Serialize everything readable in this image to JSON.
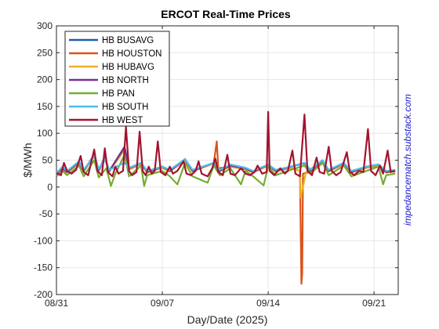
{
  "chart_data": {
    "type": "line",
    "title": "ERCOT Real-Time Prices",
    "xlabel": "Day/Date (2025)",
    "ylabel": "$/MWh",
    "credit": "impedancematch.substack.com",
    "ylim": [
      -200,
      300
    ],
    "yticks": [
      "300",
      "250",
      "200",
      "150",
      "100",
      "50",
      "0",
      "-50",
      "-100",
      "-150",
      "-200"
    ],
    "xticks": [
      {
        "day": 0,
        "label": "08/31"
      },
      {
        "day": 7,
        "label": "09/07"
      },
      {
        "day": 14,
        "label": "09/14"
      },
      {
        "day": 21,
        "label": "09/21"
      }
    ],
    "xlim_days": [
      0,
      22.6
    ],
    "grid": true,
    "legend_position": "top-left",
    "series": [
      {
        "name": "HB BUSAVG",
        "color": "#1f5fa8",
        "points": [
          [
            0,
            25
          ],
          [
            0.4,
            35
          ],
          [
            0.7,
            28
          ],
          [
            1.5,
            47
          ],
          [
            1.8,
            30
          ],
          [
            2.5,
            60
          ],
          [
            2.8,
            32
          ],
          [
            3.2,
            55
          ],
          [
            3.5,
            30
          ],
          [
            4.5,
            75
          ],
          [
            4.8,
            35
          ],
          [
            5.6,
            45
          ],
          [
            6.0,
            28
          ],
          [
            7.0,
            38
          ],
          [
            7.5,
            30
          ],
          [
            8.5,
            52
          ],
          [
            9.0,
            30
          ],
          [
            10.4,
            45
          ],
          [
            10.8,
            30
          ],
          [
            11.5,
            40
          ],
          [
            12.5,
            35
          ],
          [
            13.0,
            28
          ],
          [
            14.0,
            42
          ],
          [
            14.5,
            30
          ],
          [
            15.5,
            38
          ],
          [
            16.4,
            45
          ],
          [
            16.8,
            30
          ],
          [
            17.6,
            50
          ],
          [
            18.0,
            30
          ],
          [
            19.0,
            45
          ],
          [
            19.5,
            28
          ],
          [
            20.5,
            38
          ],
          [
            21.3,
            42
          ],
          [
            21.8,
            28
          ],
          [
            22.4,
            30
          ]
        ]
      },
      {
        "name": "HB HOUSTON",
        "color": "#d9541a",
        "points": [
          [
            0,
            24
          ],
          [
            0.4,
            33
          ],
          [
            0.7,
            27
          ],
          [
            1.5,
            45
          ],
          [
            1.8,
            29
          ],
          [
            2.5,
            58
          ],
          [
            2.8,
            30
          ],
          [
            3.2,
            52
          ],
          [
            3.5,
            29
          ],
          [
            4.5,
            70
          ],
          [
            4.8,
            33
          ],
          [
            5.6,
            43
          ],
          [
            6.0,
            27
          ],
          [
            7.0,
            36
          ],
          [
            7.5,
            29
          ],
          [
            8.5,
            50
          ],
          [
            9.0,
            29
          ],
          [
            10.4,
            44
          ],
          [
            10.6,
            85
          ],
          [
            10.7,
            35
          ],
          [
            11.5,
            38
          ],
          [
            12.5,
            33
          ],
          [
            13.0,
            27
          ],
          [
            14.0,
            40
          ],
          [
            14.5,
            29
          ],
          [
            15.5,
            36
          ],
          [
            16.1,
            30
          ],
          [
            16.2,
            -180
          ],
          [
            16.25,
            -160
          ],
          [
            16.3,
            25
          ],
          [
            16.8,
            28
          ],
          [
            17.6,
            48
          ],
          [
            18.0,
            29
          ],
          [
            19.0,
            43
          ],
          [
            19.5,
            27
          ],
          [
            20.5,
            36
          ],
          [
            21.3,
            40
          ],
          [
            21.8,
            27
          ],
          [
            22.4,
            29
          ]
        ]
      },
      {
        "name": "HB HUBAVG",
        "color": "#edb120",
        "points": [
          [
            0,
            24
          ],
          [
            0.4,
            34
          ],
          [
            0.7,
            27
          ],
          [
            1.5,
            46
          ],
          [
            1.8,
            29
          ],
          [
            2.5,
            59
          ],
          [
            2.8,
            31
          ],
          [
            3.2,
            53
          ],
          [
            3.5,
            29
          ],
          [
            4.5,
            72
          ],
          [
            4.8,
            34
          ],
          [
            5.6,
            44
          ],
          [
            6.0,
            27
          ],
          [
            7.0,
            37
          ],
          [
            7.5,
            29
          ],
          [
            8.5,
            51
          ],
          [
            9.0,
            29
          ],
          [
            10.4,
            44
          ],
          [
            10.8,
            29
          ],
          [
            11.5,
            39
          ],
          [
            12.5,
            34
          ],
          [
            13.0,
            27
          ],
          [
            14.0,
            41
          ],
          [
            14.5,
            29
          ],
          [
            15.5,
            37
          ],
          [
            16.1,
            30
          ],
          [
            16.15,
            -20
          ],
          [
            16.3,
            0
          ],
          [
            16.5,
            28
          ],
          [
            17.6,
            49
          ],
          [
            18.0,
            29
          ],
          [
            19.0,
            44
          ],
          [
            19.5,
            27
          ],
          [
            20.5,
            37
          ],
          [
            21.3,
            41
          ],
          [
            21.8,
            27
          ],
          [
            22.4,
            29
          ]
        ]
      },
      {
        "name": "HB NORTH",
        "color": "#7e2f8e",
        "points": [
          [
            0,
            25
          ],
          [
            0.4,
            35
          ],
          [
            0.7,
            28
          ],
          [
            1.5,
            47
          ],
          [
            1.8,
            30
          ],
          [
            2.5,
            60
          ],
          [
            2.8,
            32
          ],
          [
            3.2,
            55
          ],
          [
            3.5,
            30
          ],
          [
            4.5,
            74
          ],
          [
            4.8,
            35
          ],
          [
            5.6,
            45
          ],
          [
            6.0,
            28
          ],
          [
            7.0,
            38
          ],
          [
            7.5,
            30
          ],
          [
            8.5,
            52
          ],
          [
            9.0,
            30
          ],
          [
            10.4,
            45
          ],
          [
            10.8,
            30
          ],
          [
            11.5,
            40
          ],
          [
            12.5,
            35
          ],
          [
            13.0,
            28
          ],
          [
            14.0,
            42
          ],
          [
            14.5,
            30
          ],
          [
            15.5,
            38
          ],
          [
            16.4,
            44
          ],
          [
            16.8,
            30
          ],
          [
            17.6,
            50
          ],
          [
            18.0,
            30
          ],
          [
            19.0,
            45
          ],
          [
            19.5,
            28
          ],
          [
            20.5,
            38
          ],
          [
            21.3,
            42
          ],
          [
            21.8,
            28
          ],
          [
            22.4,
            30
          ]
        ]
      },
      {
        "name": "HB PAN",
        "color": "#77ac30",
        "points": [
          [
            0,
            20
          ],
          [
            0.4,
            30
          ],
          [
            0.7,
            22
          ],
          [
            1.5,
            40
          ],
          [
            1.8,
            20
          ],
          [
            2.5,
            50
          ],
          [
            2.8,
            18
          ],
          [
            3.3,
            35
          ],
          [
            3.6,
            2
          ],
          [
            3.9,
            25
          ],
          [
            4.5,
            60
          ],
          [
            4.8,
            20
          ],
          [
            5.6,
            40
          ],
          [
            5.8,
            2
          ],
          [
            6.0,
            22
          ],
          [
            7.0,
            30
          ],
          [
            7.5,
            20
          ],
          [
            8.0,
            5
          ],
          [
            8.5,
            45
          ],
          [
            9.0,
            20
          ],
          [
            10.0,
            8
          ],
          [
            10.4,
            40
          ],
          [
            10.8,
            22
          ],
          [
            11.5,
            35
          ],
          [
            12.2,
            5
          ],
          [
            12.5,
            30
          ],
          [
            13.0,
            20
          ],
          [
            13.7,
            3
          ],
          [
            14.0,
            38
          ],
          [
            14.5,
            22
          ],
          [
            15.5,
            32
          ],
          [
            16.4,
            40
          ],
          [
            16.8,
            25
          ],
          [
            17.6,
            45
          ],
          [
            18.0,
            22
          ],
          [
            19.0,
            40
          ],
          [
            19.5,
            20
          ],
          [
            20.5,
            30
          ],
          [
            21.3,
            38
          ],
          [
            21.6,
            5
          ],
          [
            21.8,
            22
          ],
          [
            22.4,
            25
          ]
        ]
      },
      {
        "name": "HB SOUTH",
        "color": "#4dbeee",
        "points": [
          [
            0,
            26
          ],
          [
            0.4,
            38
          ],
          [
            0.7,
            30
          ],
          [
            1.5,
            48
          ],
          [
            1.8,
            32
          ],
          [
            2.5,
            58
          ],
          [
            2.8,
            34
          ],
          [
            3.2,
            52
          ],
          [
            3.5,
            32
          ],
          [
            4.5,
            45
          ],
          [
            4.8,
            36
          ],
          [
            5.6,
            45
          ],
          [
            6.0,
            30
          ],
          [
            7.0,
            38
          ],
          [
            7.5,
            32
          ],
          [
            8.5,
            52
          ],
          [
            9.0,
            32
          ],
          [
            10.4,
            45
          ],
          [
            10.8,
            32
          ],
          [
            11.5,
            42
          ],
          [
            12.5,
            36
          ],
          [
            13.0,
            30
          ],
          [
            14.0,
            42
          ],
          [
            14.5,
            32
          ],
          [
            15.5,
            38
          ],
          [
            16.4,
            45
          ],
          [
            16.8,
            32
          ],
          [
            17.6,
            50
          ],
          [
            18.0,
            32
          ],
          [
            19.0,
            45
          ],
          [
            19.5,
            30
          ],
          [
            20.5,
            38
          ],
          [
            21.3,
            42
          ],
          [
            21.8,
            30
          ],
          [
            22.4,
            32
          ]
        ]
      },
      {
        "name": "HB WEST",
        "color": "#a2142f",
        "points": [
          [
            0,
            26
          ],
          [
            0.3,
            22
          ],
          [
            0.5,
            45
          ],
          [
            0.7,
            30
          ],
          [
            1.0,
            25
          ],
          [
            1.3,
            32
          ],
          [
            1.6,
            58
          ],
          [
            1.8,
            28
          ],
          [
            2.1,
            22
          ],
          [
            2.5,
            70
          ],
          [
            2.7,
            30
          ],
          [
            3.0,
            22
          ],
          [
            3.2,
            72
          ],
          [
            3.4,
            28
          ],
          [
            3.7,
            20
          ],
          [
            3.9,
            38
          ],
          [
            4.1,
            25
          ],
          [
            4.4,
            30
          ],
          [
            4.6,
            112
          ],
          [
            4.8,
            30
          ],
          [
            5.0,
            22
          ],
          [
            5.3,
            28
          ],
          [
            5.5,
            103
          ],
          [
            5.7,
            30
          ],
          [
            5.9,
            22
          ],
          [
            6.1,
            38
          ],
          [
            6.3,
            25
          ],
          [
            6.5,
            30
          ],
          [
            6.7,
            85
          ],
          [
            6.9,
            28
          ],
          [
            7.2,
            22
          ],
          [
            7.5,
            38
          ],
          [
            7.7,
            25
          ],
          [
            8.0,
            30
          ],
          [
            8.4,
            48
          ],
          [
            8.6,
            25
          ],
          [
            8.9,
            22
          ],
          [
            9.2,
            30
          ],
          [
            9.4,
            48
          ],
          [
            9.6,
            25
          ],
          [
            10.0,
            20
          ],
          [
            10.3,
            35
          ],
          [
            10.5,
            53
          ],
          [
            10.7,
            28
          ],
          [
            11.0,
            22
          ],
          [
            11.3,
            60
          ],
          [
            11.5,
            25
          ],
          [
            11.8,
            22
          ],
          [
            12.2,
            35
          ],
          [
            12.5,
            25
          ],
          [
            12.8,
            22
          ],
          [
            13.1,
            28
          ],
          [
            13.3,
            40
          ],
          [
            13.6,
            25
          ],
          [
            13.9,
            28
          ],
          [
            14.0,
            140
          ],
          [
            14.1,
            30
          ],
          [
            14.4,
            22
          ],
          [
            14.8,
            35
          ],
          [
            15.1,
            25
          ],
          [
            15.3,
            30
          ],
          [
            15.6,
            68
          ],
          [
            15.8,
            25
          ],
          [
            16.1,
            20
          ],
          [
            16.4,
            135
          ],
          [
            16.6,
            30
          ],
          [
            16.9,
            22
          ],
          [
            17.2,
            55
          ],
          [
            17.4,
            28
          ],
          [
            17.7,
            25
          ],
          [
            18.0,
            75
          ],
          [
            18.2,
            30
          ],
          [
            18.5,
            22
          ],
          [
            18.8,
            28
          ],
          [
            19.2,
            65
          ],
          [
            19.4,
            28
          ],
          [
            19.7,
            22
          ],
          [
            20.0,
            30
          ],
          [
            20.3,
            28
          ],
          [
            20.6,
            108
          ],
          [
            20.8,
            30
          ],
          [
            21.1,
            22
          ],
          [
            21.4,
            40
          ],
          [
            21.6,
            25
          ],
          [
            21.9,
            68
          ],
          [
            22.1,
            28
          ],
          [
            22.4,
            30
          ]
        ]
      }
    ]
  }
}
